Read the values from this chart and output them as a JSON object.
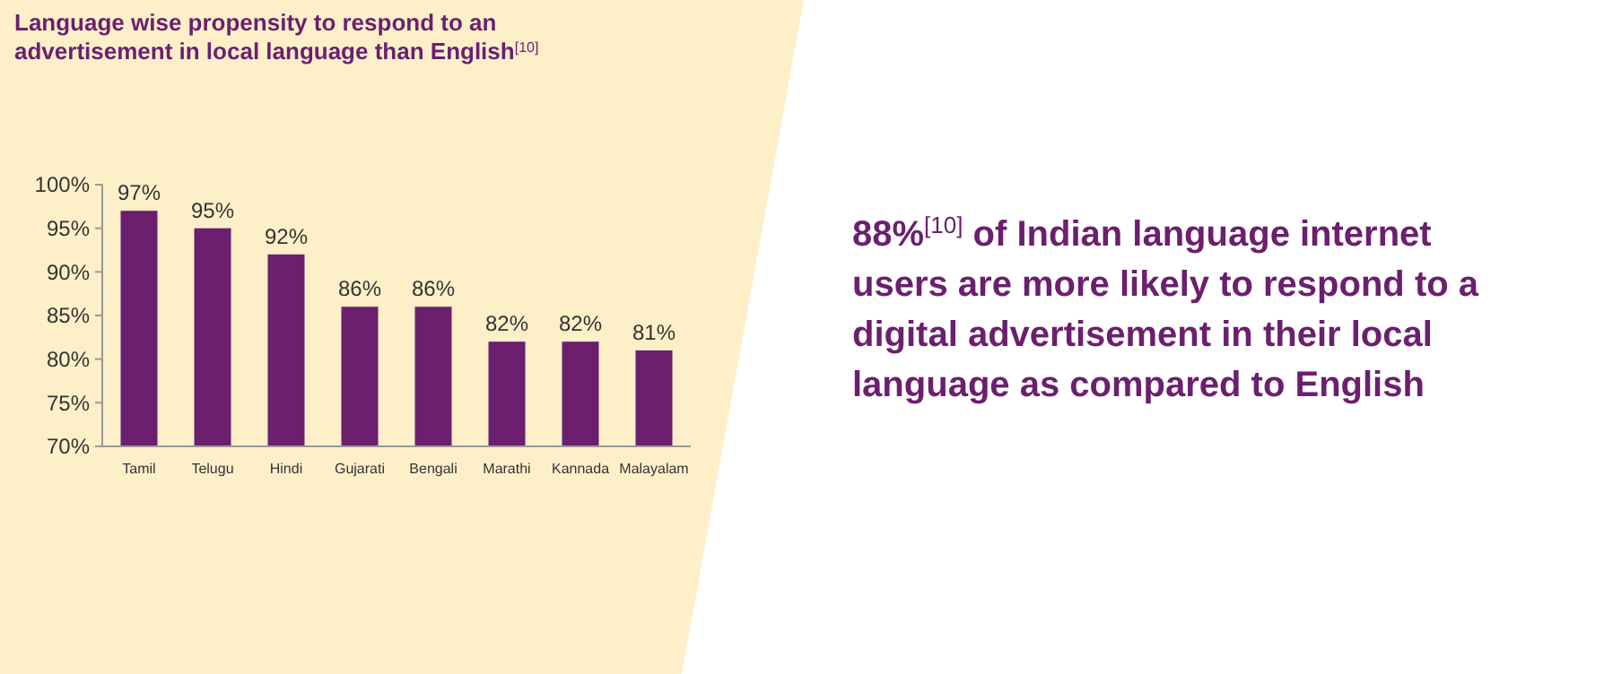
{
  "chart_data": {
    "type": "bar",
    "title": "Language wise propensity to respond to an advertisement in local language than English$^{[10]}$",
    "categories": [
      "Tamil",
      "Telugu",
      "Hindi",
      "Gujarati",
      "Bengali",
      "Marathi",
      "Kannada",
      "Malayalam"
    ],
    "values": [
      97,
      95,
      92,
      86,
      86,
      82,
      82,
      81
    ],
    "value_labels": [
      "97%",
      "95%",
      "92%",
      "86%",
      "86%",
      "82%",
      "82%",
      "81%"
    ],
    "color": "#6b1f6e",
    "ylim": [
      70,
      100
    ],
    "yticks": [
      {
        "value": 70,
        "label": "70%"
      },
      {
        "value": 75,
        "label": "75%"
      },
      {
        "value": 80,
        "label": "80%"
      },
      {
        "value": 85,
        "label": "85%"
      },
      {
        "value": 90,
        "label": "90%"
      },
      {
        "value": 95,
        "label": "95%"
      },
      {
        "value": 100,
        "label": "100%"
      }
    ],
    "grid": false,
    "annotations": [
      "88%$^{[10]}$ of Indian language internet users are more likely to respond to a digital advertisement in their local language as compared to English"
    ]
  }
}
